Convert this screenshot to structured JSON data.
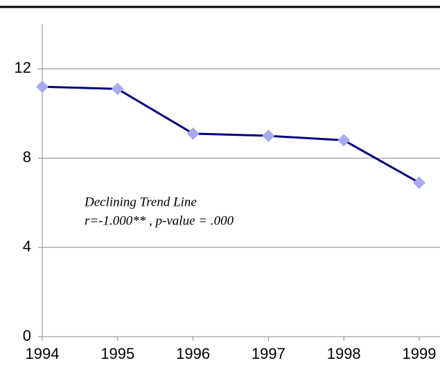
{
  "chart_data": {
    "type": "line",
    "x": [
      1994,
      1995,
      1996,
      1997,
      1998,
      1999
    ],
    "series": [
      {
        "color": "#000080",
        "marker_color": "#a9a9f2",
        "values": [
          11.2,
          11.1,
          9.1,
          9.0,
          8.8,
          6.9
        ]
      }
    ],
    "xlim": [
      1994,
      1999
    ],
    "xticks": [
      1994,
      1995,
      1996,
      1997,
      1998,
      1999
    ],
    "ylim": [
      0,
      14
    ],
    "yticks": [
      0,
      4,
      8,
      12
    ],
    "grid": true,
    "annotation": [
      "Declining Trend Line",
      "r=-1.000** , p-value = .000"
    ]
  }
}
